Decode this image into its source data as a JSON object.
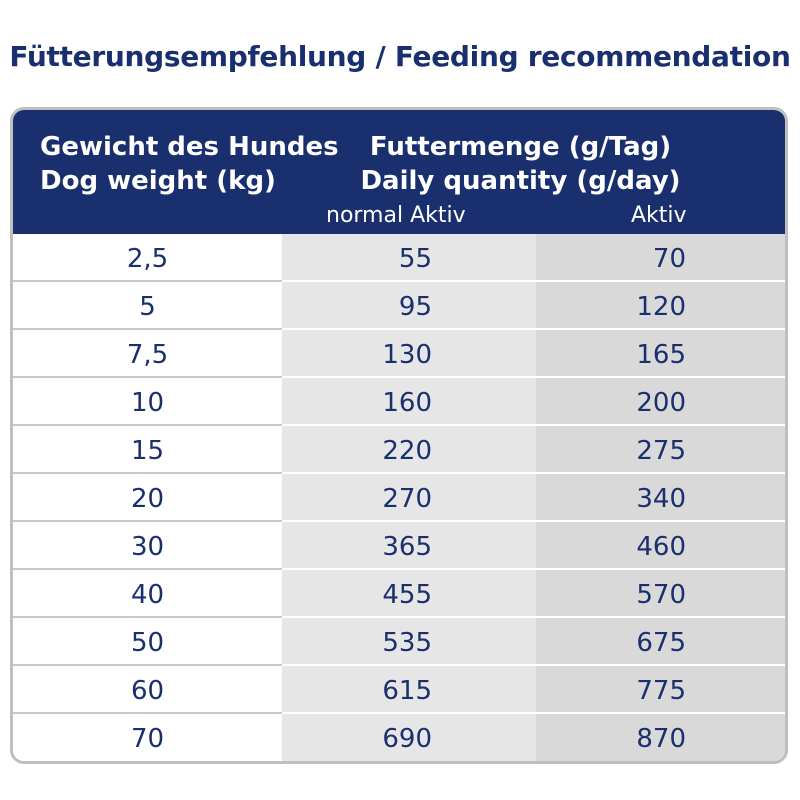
{
  "title": "Fütterungsempfehlung / Feeding recommendation",
  "header": {
    "weight_de": "Gewicht des Hundes",
    "weight_en": "Dog weight (kg)",
    "qty_de": "Futtermenge (g/Tag)",
    "qty_en": "Daily quantity (g/day)",
    "normal_label": "normal Aktiv",
    "active_label": "Aktiv"
  },
  "colors": {
    "header_bg": "#1a2f6e",
    "text": "#1a2f6e",
    "col2_bg": "#e6e6e6",
    "col3_bg": "#d9d9d9",
    "border": "#bfbfbf"
  },
  "rows": [
    {
      "weight": "2,5",
      "normal": "55",
      "active": "70"
    },
    {
      "weight": "5",
      "normal": "95",
      "active": "120"
    },
    {
      "weight": "7,5",
      "normal": "130",
      "active": "165"
    },
    {
      "weight": "10",
      "normal": "160",
      "active": "200"
    },
    {
      "weight": "15",
      "normal": "220",
      "active": "275"
    },
    {
      "weight": "20",
      "normal": "270",
      "active": "340"
    },
    {
      "weight": "30",
      "normal": "365",
      "active": "460"
    },
    {
      "weight": "40",
      "normal": "455",
      "active": "570"
    },
    {
      "weight": "50",
      "normal": "535",
      "active": "675"
    },
    {
      "weight": "60",
      "normal": "615",
      "active": "775"
    },
    {
      "weight": "70",
      "normal": "690",
      "active": "870"
    }
  ]
}
